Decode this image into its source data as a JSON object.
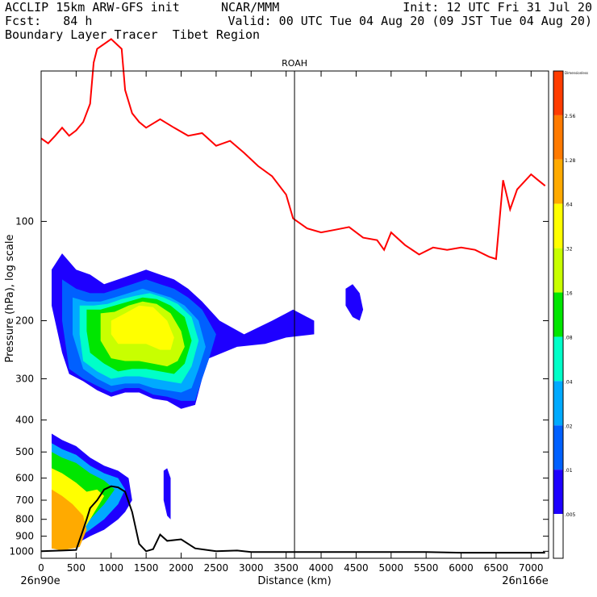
{
  "header": {
    "line1_left": "ACCLIP 15km ARW-GFS init",
    "line1_mid": "NCAR/MMM",
    "line1_right": "Init: 12 UTC Fri 31 Jul 20",
    "line2_left": "Fcst:   84 h",
    "line2_right": "Valid: 00 UTC Tue 04 Aug 20 (09 JST Tue 04 Aug 20)",
    "line3_left": "Boundary Layer Tracer  Tibet Region"
  },
  "chart_data": {
    "type": "cross-section",
    "station_label": "ROAH",
    "station_x_km": 3620,
    "xlabel": "Distance (km)",
    "ylabel": "Pressure (hPa), log scale",
    "xlim": [
      0,
      7250
    ],
    "ylim": [
      1050,
      35
    ],
    "x_ticks": [
      0,
      500,
      1000,
      1500,
      2000,
      2500,
      3000,
      3500,
      4000,
      4500,
      5000,
      5500,
      6000,
      6500,
      7000
    ],
    "y_ticks": [
      100,
      200,
      300,
      400,
      500,
      600,
      700,
      800,
      900,
      1000
    ],
    "x_start_label": "26n90e",
    "x_end_label": "26n166e",
    "colorbar": {
      "levels": [
        "Dimensionless",
        "2.56",
        "1.28",
        ".64",
        ".32",
        ".16",
        ".08",
        ".04",
        ".02",
        ".01",
        ".005"
      ],
      "colors": [
        "#ff3c00",
        "#ff7a00",
        "#ffaa00",
        "#ffff00",
        "#c8ff00",
        "#00e600",
        "#00ffc8",
        "#00aaff",
        "#0060ff",
        "#1e00ff",
        "#ffffff"
      ]
    },
    "tropopause_line": {
      "color": "#ff0000",
      "x": [
        0,
        100,
        200,
        300,
        400,
        500,
        600,
        700,
        750,
        800,
        1000,
        1150,
        1200,
        1300,
        1400,
        1500,
        1700,
        1900,
        2100,
        2300,
        2500,
        2700,
        2900,
        3100,
        3300,
        3500,
        3600,
        3800,
        4000,
        4200,
        4400,
        4600,
        4800,
        4900,
        5000,
        5200,
        5400,
        5600,
        5800,
        6000,
        6200,
        6400,
        6500,
        6600,
        6700,
        6800,
        7000,
        7100,
        7200
      ],
      "p": [
        56,
        58,
        55,
        52,
        55,
        53,
        50,
        44,
        33,
        30,
        28,
        30,
        40,
        47,
        50,
        52,
        49,
        52,
        55,
        54,
        59,
        57,
        62,
        68,
        73,
        83,
        98,
        105,
        108,
        106,
        104,
        112,
        114,
        122,
        108,
        118,
        126,
        120,
        122,
        120,
        122,
        128,
        130,
        75,
        92,
        80,
        72,
        75,
        78
      ]
    },
    "terrain_line": {
      "color": "#000000",
      "x": [
        0,
        300,
        500,
        600,
        650,
        700,
        800,
        900,
        1000,
        1100,
        1200,
        1300,
        1400,
        1500,
        1600,
        1700,
        1800,
        2000,
        2200,
        2500,
        2800,
        3000,
        3500,
        4500,
        5500,
        6000,
        6500,
        7200
      ],
      "p": [
        1000,
        995,
        990,
        860,
        800,
        740,
        700,
        650,
        635,
        640,
        660,
        760,
        950,
        1000,
        985,
        890,
        930,
        920,
        980,
        1000,
        995,
        1005,
        1005,
        1005,
        1005,
        1010,
        1010,
        1010
      ]
    },
    "tracer_regions": [
      {
        "name": "upper",
        "level": ".01",
        "x": [
          150,
          300,
          500,
          700,
          900,
          1100,
          1300,
          1500,
          1700,
          1900,
          2100,
          2300,
          2550,
          2900,
          3300,
          3500,
          3600,
          3900,
          3900,
          3500,
          3200,
          2800,
          2400,
          2300,
          2200,
          2000,
          1800,
          1600,
          1400,
          1200,
          1000,
          800,
          600,
          400,
          300,
          150
        ],
        "p": [
          140,
          125,
          140,
          145,
          155,
          150,
          145,
          140,
          145,
          150,
          160,
          175,
          200,
          220,
          200,
          190,
          185,
          200,
          220,
          225,
          235,
          240,
          260,
          300,
          360,
          370,
          350,
          345,
          330,
          330,
          340,
          325,
          305,
          290,
          250,
          180
        ]
      },
      {
        "name": "upper",
        "level": ".02",
        "x": [
          300,
          500,
          700,
          900,
          1100,
          1300,
          1500,
          1700,
          1900,
          2100,
          2300,
          2500,
          2400,
          2300,
          2200,
          2000,
          1800,
          1600,
          1400,
          1200,
          1000,
          800,
          600,
          400,
          300
        ],
        "p": [
          150,
          160,
          165,
          165,
          160,
          155,
          150,
          155,
          160,
          170,
          185,
          220,
          260,
          300,
          350,
          350,
          340,
          335,
          320,
          320,
          330,
          315,
          300,
          280,
          200
        ]
      },
      {
        "name": "upper",
        "level": ".04",
        "x": [
          450,
          650,
          850,
          1050,
          1250,
          1450,
          1650,
          1850,
          2050,
          2250,
          2350,
          2250,
          2150,
          2000,
          1800,
          1600,
          1400,
          1200,
          1000,
          800,
          600,
          450
        ],
        "p": [
          170,
          175,
          175,
          170,
          165,
          160,
          165,
          170,
          180,
          200,
          240,
          280,
          320,
          330,
          325,
          320,
          310,
          310,
          315,
          300,
          280,
          220
        ]
      },
      {
        "name": "upper",
        "level": ".08",
        "x": [
          550,
          750,
          950,
          1150,
          1350,
          1550,
          1750,
          1950,
          2150,
          2250,
          2150,
          2000,
          1800,
          1600,
          1400,
          1200,
          1000,
          800,
          600,
          550
        ],
        "p": [
          180,
          180,
          178,
          172,
          168,
          165,
          170,
          178,
          195,
          230,
          275,
          310,
          305,
          300,
          295,
          295,
          300,
          285,
          265,
          220
        ]
      },
      {
        "name": "upper",
        "level": ".16",
        "x": [
          650,
          850,
          1050,
          1250,
          1450,
          1650,
          1850,
          2050,
          2150,
          2050,
          1900,
          1700,
          1500,
          1300,
          1100,
          900,
          700,
          650
        ],
        "p": [
          185,
          185,
          180,
          175,
          170,
          172,
          180,
          195,
          230,
          270,
          290,
          285,
          280,
          280,
          285,
          270,
          250,
          215
        ]
      },
      {
        "name": "upper",
        "level": ".32",
        "x": [
          850,
          1050,
          1250,
          1450,
          1650,
          1850,
          2000,
          2050,
          1950,
          1800,
          1600,
          1400,
          1200,
          1000,
          850
        ],
        "p": [
          190,
          188,
          180,
          175,
          178,
          190,
          215,
          240,
          265,
          275,
          270,
          265,
          265,
          260,
          230
        ]
      },
      {
        "name": "upper",
        "level": ".64",
        "x": [
          1000,
          1200,
          1400,
          1600,
          1800,
          1900,
          1850,
          1700,
          1500,
          1300,
          1100,
          1000
        ],
        "p": [
          200,
          190,
          180,
          182,
          200,
          225,
          245,
          245,
          235,
          235,
          235,
          220
        ]
      },
      {
        "name": "blob",
        "level": ".01",
        "x": [
          4350,
          4450,
          4550,
          4600,
          4550,
          4450,
          4350
        ],
        "p": [
          160,
          155,
          165,
          185,
          200,
          195,
          180
        ]
      },
      {
        "name": "low",
        "level": ".01",
        "x": [
          150,
          300,
          500,
          700,
          900,
          1100,
          1250,
          1300,
          1200,
          1100,
          900,
          700,
          500,
          300,
          150
        ],
        "p": [
          440,
          460,
          480,
          520,
          550,
          570,
          600,
          700,
          760,
          800,
          860,
          900,
          950,
          980,
          900
        ]
      },
      {
        "name": "low",
        "level": ".04",
        "x": [
          150,
          300,
          500,
          700,
          900,
          1100,
          1200,
          1100,
          900,
          700,
          500,
          300,
          150
        ],
        "p": [
          470,
          490,
          510,
          550,
          580,
          600,
          650,
          720,
          800,
          860,
          920,
          980,
          900
        ]
      },
      {
        "name": "low",
        "level": ".16",
        "x": [
          150,
          300,
          500,
          700,
          900,
          1050,
          900,
          700,
          500,
          300,
          150
        ],
        "p": [
          500,
          520,
          540,
          580,
          610,
          650,
          720,
          800,
          880,
          960,
          900
        ]
      },
      {
        "name": "low",
        "level": ".64",
        "x": [
          150,
          300,
          500,
          650,
          800,
          900,
          700,
          550,
          300,
          150
        ],
        "p": [
          560,
          580,
          620,
          660,
          650,
          680,
          800,
          900,
          990,
          950
        ]
      },
      {
        "name": "low",
        "level": "1.28",
        "x": [
          150,
          300,
          450,
          600,
          650,
          550,
          300,
          150
        ],
        "p": [
          650,
          680,
          720,
          780,
          860,
          970,
          995,
          980
        ]
      },
      {
        "name": "spike",
        "level": ".01",
        "x": [
          1750,
          1800,
          1850,
          1850,
          1800,
          1750
        ],
        "p": [
          570,
          560,
          600,
          800,
          780,
          700
        ]
      }
    ]
  }
}
